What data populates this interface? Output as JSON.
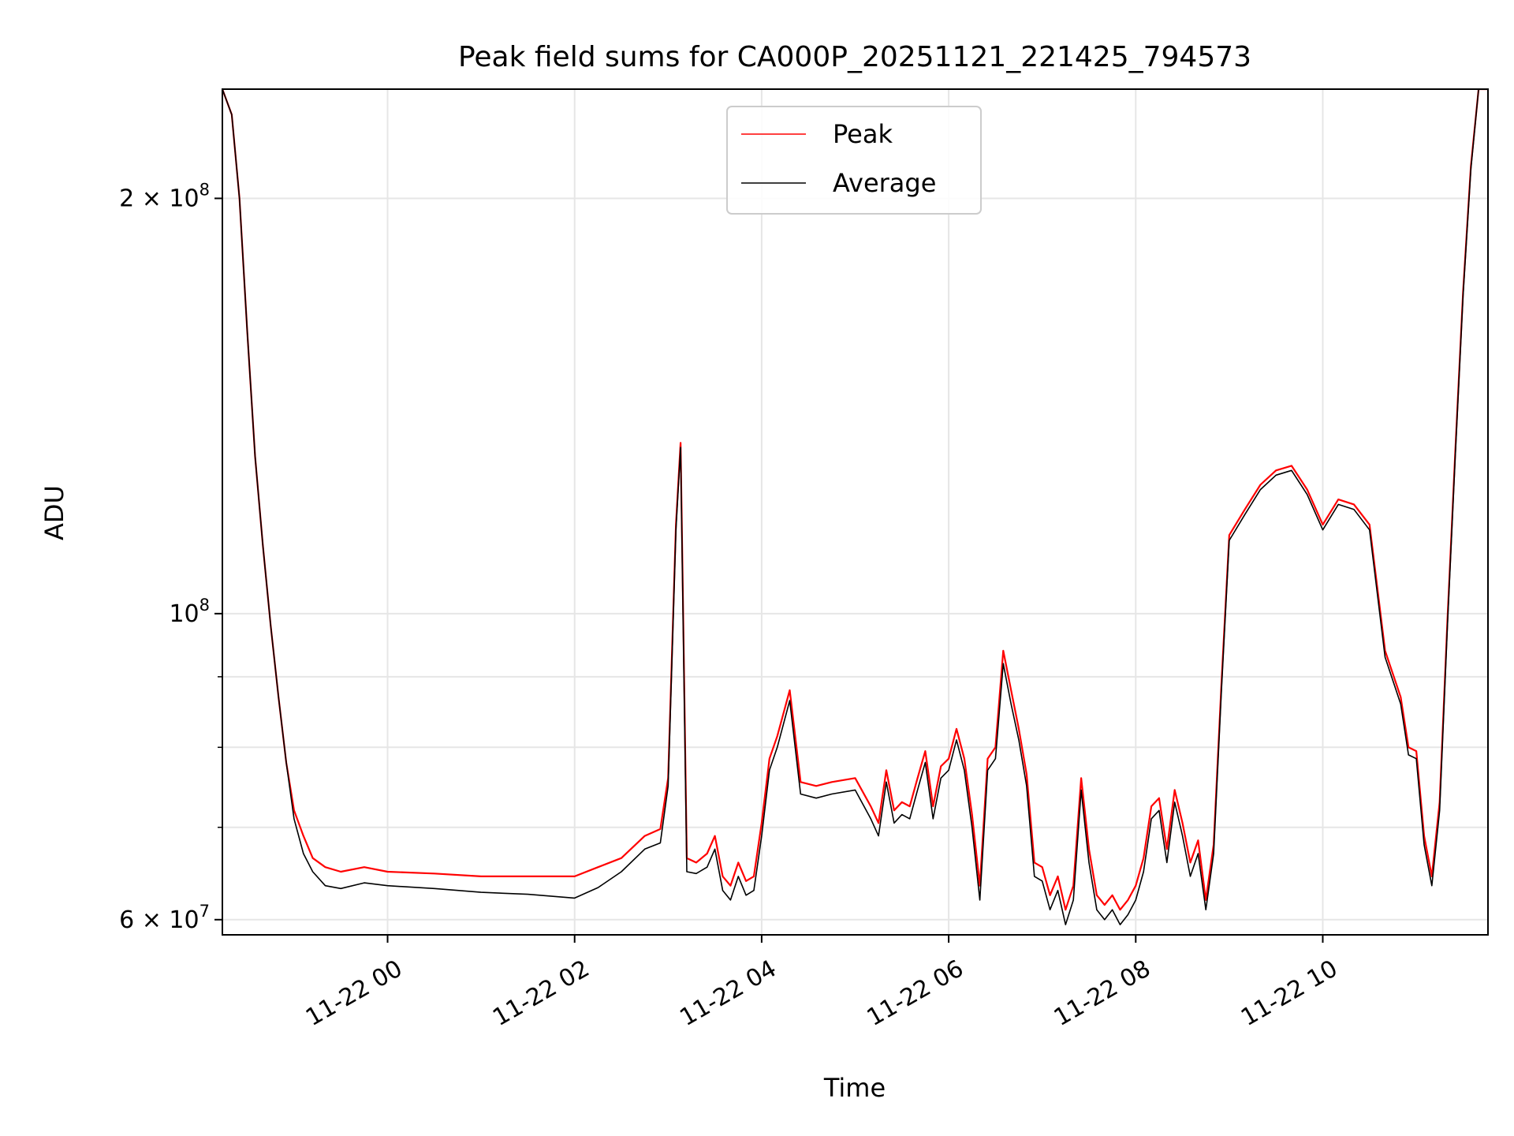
{
  "chart_data": {
    "type": "line",
    "title": "Peak field sums for CA000P_20251121_221425_794573",
    "xlabel": "Time",
    "ylabel": "ADU",
    "y_scale": "log",
    "ylim": [
      58500000,
      240000000
    ],
    "xlim": [
      "11-21 22:14",
      "11-22 11:46"
    ],
    "x_ticks": [
      "11-22 00",
      "11-22 02",
      "11-22 04",
      "11-22 06",
      "11-22 08",
      "11-22 10"
    ],
    "y_ticks": [
      {
        "value": 60000000,
        "label": "6 × 10",
        "exp": "7"
      },
      {
        "value": 100000000,
        "label": "10",
        "exp": "8"
      },
      {
        "value": 200000000,
        "label": "2 × 10",
        "exp": "8"
      }
    ],
    "y_minor_ticks": [
      70000000,
      80000000,
      90000000
    ],
    "grid": true,
    "legend": {
      "position": "top-center",
      "entries": [
        "Peak",
        "Average"
      ]
    },
    "colors": {
      "Peak": "#ff0000",
      "Average": "#000000",
      "grid": "#e6e6e6"
    },
    "series": [
      {
        "name": "Average",
        "color": "#000000",
        "x": [
          "11-21 22:14",
          "11-21 22:20",
          "11-21 22:25",
          "11-21 22:30",
          "11-21 22:35",
          "11-21 22:40",
          "11-21 22:45",
          "11-21 22:50",
          "11-21 22:55",
          "11-21 23:00",
          "11-21 23:06",
          "11-21 23:12",
          "11-21 23:20",
          "11-21 23:30",
          "11-21 23:45",
          "11-22 00:00",
          "11-22 00:30",
          "11-22 01:00",
          "11-22 01:30",
          "11-22 02:00",
          "11-22 02:15",
          "11-22 02:30",
          "11-22 02:45",
          "11-22 02:55",
          "11-22 03:00",
          "11-22 03:05",
          "11-22 03:08",
          "11-22 03:12",
          "11-22 03:18",
          "11-22 03:25",
          "11-22 03:30",
          "11-22 03:35",
          "11-22 03:40",
          "11-22 03:45",
          "11-22 03:50",
          "11-22 03:55",
          "11-22 04:00",
          "11-22 04:05",
          "11-22 04:10",
          "11-22 04:18",
          "11-22 04:25",
          "11-22 04:35",
          "11-22 04:45",
          "11-22 05:00",
          "11-22 05:10",
          "11-22 05:15",
          "11-22 05:20",
          "11-22 05:25",
          "11-22 05:30",
          "11-22 05:35",
          "11-22 05:40",
          "11-22 05:45",
          "11-22 05:50",
          "11-22 05:55",
          "11-22 06:00",
          "11-22 06:05",
          "11-22 06:10",
          "11-22 06:15",
          "11-22 06:20",
          "11-22 06:25",
          "11-22 06:30",
          "11-22 06:35",
          "11-22 06:40",
          "11-22 06:45",
          "11-22 06:50",
          "11-22 06:55",
          "11-22 07:00",
          "11-22 07:05",
          "11-22 07:10",
          "11-22 07:15",
          "11-22 07:20",
          "11-22 07:25",
          "11-22 07:30",
          "11-22 07:35",
          "11-22 07:40",
          "11-22 07:45",
          "11-22 07:50",
          "11-22 07:55",
          "11-22 08:00",
          "11-22 08:05",
          "11-22 08:10",
          "11-22 08:15",
          "11-22 08:20",
          "11-22 08:25",
          "11-22 08:30",
          "11-22 08:35",
          "11-22 08:40",
          "11-22 08:45",
          "11-22 08:50",
          "11-22 08:55",
          "11-22 09:00",
          "11-22 09:10",
          "11-22 09:20",
          "11-22 09:30",
          "11-22 09:40",
          "11-22 09:50",
          "11-22 10:00",
          "11-22 10:10",
          "11-22 10:20",
          "11-22 10:30",
          "11-22 10:40",
          "11-22 10:50",
          "11-22 10:55",
          "11-22 11:00",
          "11-22 11:05",
          "11-22 11:10",
          "11-22 11:15",
          "11-22 11:20",
          "11-22 11:25",
          "11-22 11:30",
          "11-22 11:35",
          "11-22 11:40",
          "11-22 11:46"
        ],
        "values": [
          240000000,
          230000000,
          200000000,
          160000000,
          130000000,
          112000000,
          98000000,
          87000000,
          78000000,
          71000000,
          67000000,
          65000000,
          63500000,
          63200000,
          63800000,
          63500000,
          63200000,
          62800000,
          62600000,
          62200000,
          63300000,
          65000000,
          67500000,
          68200000,
          75000000,
          115000000,
          132000000,
          65000000,
          64800000,
          65500000,
          67500000,
          63000000,
          62000000,
          64500000,
          62500000,
          63000000,
          69000000,
          77000000,
          80000000,
          86500000,
          74000000,
          73500000,
          74000000,
          74500000,
          71000000,
          69000000,
          75500000,
          70500000,
          71500000,
          71000000,
          74500000,
          78000000,
          71000000,
          76000000,
          77000000,
          81000000,
          77000000,
          70000000,
          62000000,
          77000000,
          78500000,
          92000000,
          86000000,
          81000000,
          75000000,
          64500000,
          64000000,
          61000000,
          63000000,
          59500000,
          62000000,
          74500000,
          66000000,
          61000000,
          60000000,
          61000000,
          59500000,
          60500000,
          62000000,
          65000000,
          71000000,
          72000000,
          66000000,
          73000000,
          69000000,
          64500000,
          67000000,
          61000000,
          67000000,
          88000000,
          113000000,
          118000000,
          123000000,
          126000000,
          127000000,
          122000000,
          115000000,
          120000000,
          119000000,
          115000000,
          93000000,
          86000000,
          79000000,
          78500000,
          68000000,
          63500000,
          72000000,
          98000000,
          130000000,
          170000000,
          210000000,
          240000000,
          240000000
        ]
      },
      {
        "name": "Peak",
        "color": "#ff0000",
        "x": [
          "11-21 22:14",
          "11-21 22:20",
          "11-21 22:25",
          "11-21 22:30",
          "11-21 22:35",
          "11-21 22:40",
          "11-21 22:45",
          "11-21 22:50",
          "11-21 22:55",
          "11-21 23:00",
          "11-21 23:06",
          "11-21 23:12",
          "11-21 23:20",
          "11-21 23:30",
          "11-21 23:45",
          "11-22 00:00",
          "11-22 00:30",
          "11-22 01:00",
          "11-22 01:30",
          "11-22 02:00",
          "11-22 02:15",
          "11-22 02:30",
          "11-22 02:45",
          "11-22 02:55",
          "11-22 03:00",
          "11-22 03:05",
          "11-22 03:08",
          "11-22 03:12",
          "11-22 03:18",
          "11-22 03:25",
          "11-22 03:30",
          "11-22 03:35",
          "11-22 03:40",
          "11-22 03:45",
          "11-22 03:50",
          "11-22 03:55",
          "11-22 04:00",
          "11-22 04:05",
          "11-22 04:10",
          "11-22 04:18",
          "11-22 04:25",
          "11-22 04:35",
          "11-22 04:45",
          "11-22 05:00",
          "11-22 05:10",
          "11-22 05:15",
          "11-22 05:20",
          "11-22 05:25",
          "11-22 05:30",
          "11-22 05:35",
          "11-22 05:40",
          "11-22 05:45",
          "11-22 05:50",
          "11-22 05:55",
          "11-22 06:00",
          "11-22 06:05",
          "11-22 06:10",
          "11-22 06:15",
          "11-22 06:20",
          "11-22 06:25",
          "11-22 06:30",
          "11-22 06:35",
          "11-22 06:40",
          "11-22 06:45",
          "11-22 06:50",
          "11-22 06:55",
          "11-22 07:00",
          "11-22 07:05",
          "11-22 07:10",
          "11-22 07:15",
          "11-22 07:20",
          "11-22 07:25",
          "11-22 07:30",
          "11-22 07:35",
          "11-22 07:40",
          "11-22 07:45",
          "11-22 07:50",
          "11-22 07:55",
          "11-22 08:00",
          "11-22 08:05",
          "11-22 08:10",
          "11-22 08:15",
          "11-22 08:20",
          "11-22 08:25",
          "11-22 08:30",
          "11-22 08:35",
          "11-22 08:40",
          "11-22 08:45",
          "11-22 08:50",
          "11-22 08:55",
          "11-22 09:00",
          "11-22 09:10",
          "11-22 09:20",
          "11-22 09:30",
          "11-22 09:40",
          "11-22 09:50",
          "11-22 10:00",
          "11-22 10:10",
          "11-22 10:20",
          "11-22 10:30",
          "11-22 10:40",
          "11-22 10:50",
          "11-22 10:55",
          "11-22 11:00",
          "11-22 11:05",
          "11-22 11:10",
          "11-22 11:15",
          "11-22 11:20",
          "11-22 11:25",
          "11-22 11:30",
          "11-22 11:35",
          "11-22 11:40",
          "11-22 11:46"
        ],
        "values": [
          240000000,
          230000000,
          200000000,
          160000000,
          130000000,
          112000000,
          98000000,
          87000000,
          78000000,
          72000000,
          69000000,
          66500000,
          65500000,
          65000000,
          65500000,
          65000000,
          64800000,
          64500000,
          64500000,
          64500000,
          65500000,
          66500000,
          69000000,
          69800000,
          76000000,
          116000000,
          133000000,
          66500000,
          66000000,
          67000000,
          69000000,
          64500000,
          63500000,
          66000000,
          64000000,
          64500000,
          70500000,
          78500000,
          81500000,
          88000000,
          75500000,
          75000000,
          75500000,
          76000000,
          72500000,
          70500000,
          77000000,
          72000000,
          73000000,
          72500000,
          76000000,
          79500000,
          72500000,
          77500000,
          78500000,
          82500000,
          78500000,
          71500000,
          63500000,
          78500000,
          80000000,
          94000000,
          88000000,
          82500000,
          76500000,
          66000000,
          65500000,
          62500000,
          64500000,
          61000000,
          63500000,
          76000000,
          67500000,
          62500000,
          61500000,
          62500000,
          61000000,
          62000000,
          63500000,
          66500000,
          72500000,
          73500000,
          67500000,
          74500000,
          70500000,
          66000000,
          68500000,
          62000000,
          68000000,
          89000000,
          114000000,
          119000000,
          124000000,
          127000000,
          128000000,
          123000000,
          116000000,
          121000000,
          120000000,
          116000000,
          94000000,
          87000000,
          80000000,
          79500000,
          69000000,
          64500000,
          73000000,
          99000000,
          131000000,
          171000000,
          211000000,
          240000000,
          240000000
        ]
      }
    ]
  }
}
